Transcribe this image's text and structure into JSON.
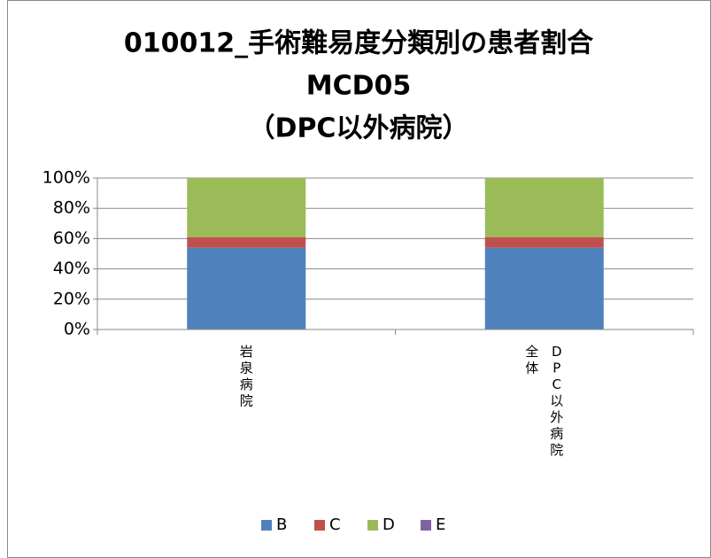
{
  "chart_data": {
    "type": "stacked_bar",
    "title": [
      "010012_手術難易度分類別の患者割合",
      "MCD05",
      "（DPC以外病院）"
    ],
    "categories": [
      "岩泉病院",
      "DPC以外病院全体"
    ],
    "series": [
      {
        "name": "B",
        "color": "#4f81bd",
        "values": [
          54,
          54
        ]
      },
      {
        "name": "C",
        "color": "#c0504d",
        "values": [
          7,
          7
        ]
      },
      {
        "name": "D",
        "color": "#9bbb59",
        "values": [
          39,
          39
        ]
      },
      {
        "name": "E",
        "color": "#8064a2",
        "values": [
          0,
          0
        ]
      }
    ],
    "ylim": [
      0,
      100
    ],
    "yticks": [
      {
        "value": 0,
        "label": "0%"
      },
      {
        "value": 20,
        "label": "20%"
      },
      {
        "value": 40,
        "label": "40%"
      },
      {
        "value": 60,
        "label": "60%"
      },
      {
        "value": 80,
        "label": "80%"
      },
      {
        "value": 100,
        "label": "100%"
      }
    ],
    "grid": true,
    "legend": "bottom"
  }
}
